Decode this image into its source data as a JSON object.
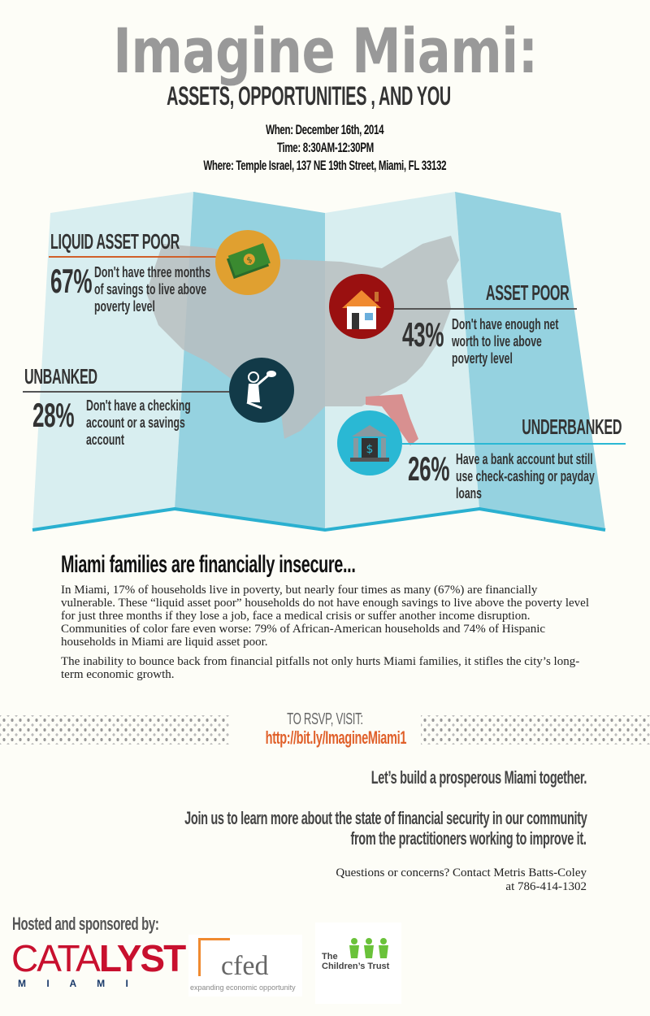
{
  "header": {
    "title": "Imagine Miami:",
    "subtitle": "ASSETS, OPPORTUNITIES , AND YOU",
    "when": "When: December 16th, 2014",
    "time": "Time: 8:30AM-12:30PM",
    "where": "Where: Temple Israel, 137 NE 19th Street, Miami, FL 33132"
  },
  "stats": [
    {
      "label": "LIQUID ASSET POOR",
      "percent": "67%",
      "lines": [
        "Don't have three months",
        "of savings to live above",
        "poverty level"
      ],
      "icon": "money-icon",
      "color": "#e0a030"
    },
    {
      "label": "ASSET POOR",
      "percent": "43%",
      "lines": [
        "Don't have enough net",
        "worth to live above",
        "poverty level"
      ],
      "icon": "house-icon",
      "color": "#9a1010"
    },
    {
      "label": "UNBANKED",
      "percent": "28%",
      "lines": [
        "Don't have a checking",
        "account or a savings",
        "account"
      ],
      "icon": "child-icon",
      "color": "#123a48"
    },
    {
      "label": "UNDERBANKED",
      "percent": "26%",
      "lines": [
        "Have a bank account but still",
        "use check-cashing or payday",
        "loans"
      ],
      "icon": "bank-icon",
      "color": "#2ab8d4"
    }
  ],
  "body": {
    "heading": "Miami families are financially insecure...",
    "para1": "In Miami, 17% of households live in poverty, but nearly four times as many (67%) are financially vulnerable. These “liquid asset poor” households do not have enough savings to live above the poverty level for just three months if they lose a job, face a medical crisis or suffer another income disruption. Communities of color fare even worse: 79% of African-American households and 74% of Hispanic households in Miami are liquid asset poor.",
    "para2": "The inability to bounce back from financial pitfalls not only hurts Miami families, it stifles the city’s long-term economic growth."
  },
  "rsvp": {
    "label": "TO RSVP, VISIT:",
    "link": "http://bit.ly/ImagineMiami1",
    "link_color": "#e0602a"
  },
  "cta": {
    "line1": "Let’s build a prosperous Miami together.",
    "line2a": "Join us to learn more about the state of financial security in our community",
    "line2b": "from the practitioners working to improve it.",
    "contact1": "Questions or concerns? Contact Metris Batts-Coley",
    "contact2": "at 786-414-1302"
  },
  "sponsors": {
    "label": "Hosted and sponsored by:",
    "logos": [
      {
        "name": "CATALYST MIAMI",
        "text_a": "CATA",
        "text_b": "LYST",
        "sub": "M I A M I"
      },
      {
        "name": "cfed",
        "text": "cfed",
        "tagline": "expanding economic opportunity"
      },
      {
        "name": "The Children's Trust",
        "text_a": "The",
        "text_b": "Children’s Trust"
      }
    ]
  },
  "colors": {
    "map_light": "#d8eef0",
    "map_dark": "#95d2e0",
    "map_edge": "#2ab0d0",
    "usa": "#b8bec0",
    "florida": "#d89090"
  }
}
